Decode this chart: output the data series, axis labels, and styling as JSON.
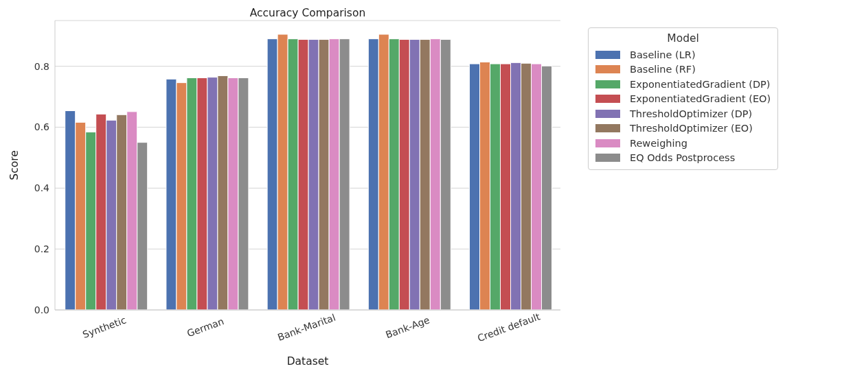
{
  "chart_data": {
    "type": "bar",
    "title": "Accuracy Comparison",
    "xlabel": "Dataset",
    "ylabel": "Score",
    "legend_title": "Model",
    "categories": [
      "Synthetic",
      "German",
      "Bank-Marital",
      "Bank-Age",
      "Credit default"
    ],
    "series": [
      {
        "name": "Baseline (LR)",
        "color": "#4c72b0",
        "values": [
          0.654,
          0.758,
          0.89,
          0.89,
          0.808
        ]
      },
      {
        "name": "Baseline (RF)",
        "color": "#dd8452",
        "values": [
          0.616,
          0.746,
          0.905,
          0.905,
          0.814
        ]
      },
      {
        "name": "ExponentiatedGradient (DP)",
        "color": "#55a868",
        "values": [
          0.584,
          0.762,
          0.89,
          0.89,
          0.808
        ]
      },
      {
        "name": "ExponentiatedGradient (EO)",
        "color": "#c44e52",
        "values": [
          0.643,
          0.762,
          0.888,
          0.888,
          0.808
        ]
      },
      {
        "name": "ThresholdOptimizer (DP)",
        "color": "#8172b3",
        "values": [
          0.623,
          0.764,
          0.888,
          0.888,
          0.812
        ]
      },
      {
        "name": "ThresholdOptimizer (EO)",
        "color": "#937860",
        "values": [
          0.641,
          0.769,
          0.888,
          0.888,
          0.81
        ]
      },
      {
        "name": "Reweighing",
        "color": "#da8bc3",
        "values": [
          0.651,
          0.762,
          0.89,
          0.89,
          0.808
        ]
      },
      {
        "name": "EQ Odds Postprocess",
        "color": "#8c8c8c",
        "values": [
          0.55,
          0.762,
          0.89,
          0.888,
          0.801
        ]
      }
    ],
    "ylim": [
      0,
      0.95
    ],
    "yticks": [
      {
        "value": 0,
        "label": "0.0"
      },
      {
        "value": 0.2,
        "label": "0.2"
      },
      {
        "value": 0.4,
        "label": "0.4"
      },
      {
        "value": 0.6,
        "label": "0.6"
      },
      {
        "value": 0.8,
        "label": "0.8"
      }
    ],
    "grid": "y",
    "legend": "top right"
  }
}
